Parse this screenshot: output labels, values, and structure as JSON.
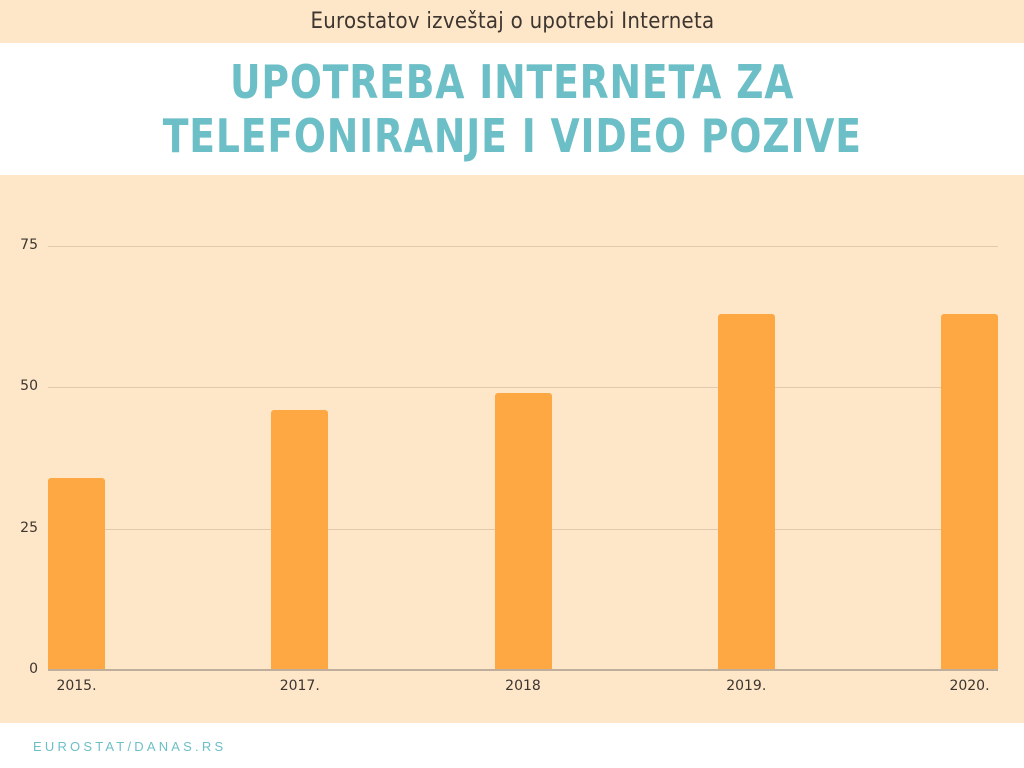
{
  "header": {
    "kicker": "Eurostatov izveštaj o upotrebi Interneta",
    "title_lines": [
      "UPOTREBA INTERNETA ZA",
      "TELEFONIRANJE I VIDEO POZIVE"
    ]
  },
  "footer": {
    "source": "EUROSTAT/DANAS.RS"
  },
  "colors": {
    "bar": "#fea844",
    "background": "#fee7c9",
    "title": "#6cbfc6",
    "text": "#3d3530"
  },
  "chart_data": {
    "type": "bar",
    "title": "UPOTREBA INTERNETA ZA TELEFONIRANJE I VIDEO POZIVE",
    "subtitle": "Eurostatov izveštaj o upotrebi Interneta",
    "categories": [
      "2015.",
      "2017.",
      "2018",
      "2019.",
      "2020."
    ],
    "values": [
      34,
      46,
      49,
      63,
      63
    ],
    "xlabel": "",
    "ylabel": "",
    "ylim": [
      0,
      75
    ],
    "yticks": [
      0,
      25,
      50,
      75
    ],
    "grid": true,
    "legend": "none",
    "source": "EUROSTAT/DANAS.RS"
  }
}
